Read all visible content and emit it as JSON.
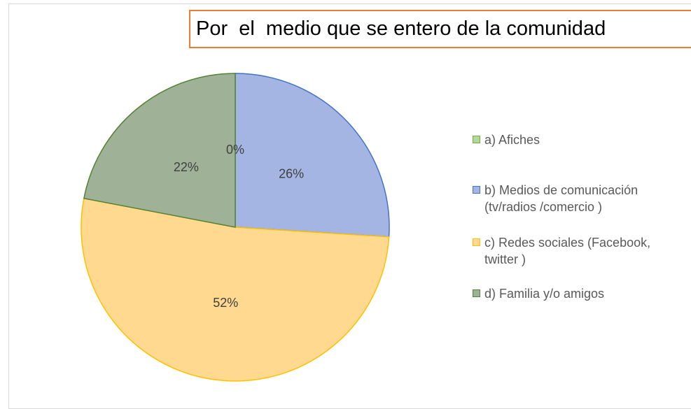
{
  "chart_data": {
    "type": "pie",
    "title": "Por  el  medio que se entero de la comunidad",
    "categories": [
      "a) Afiches",
      "b) Medios de comunicación (tv/radios /comercio )",
      "c) Redes sociales (Facebook, twitter )",
      "d) Familia y/o amigos"
    ],
    "values": [
      0,
      26,
      52,
      22
    ],
    "value_labels": [
      "0%",
      "26%",
      "52%",
      "22%"
    ],
    "colors": [
      "#b5d79b",
      "#a5b5e3",
      "#fed98f",
      "#9fb196"
    ],
    "edge_colors": [
      "#70ad47",
      "#4472c4",
      "#ffc000",
      "#548235"
    ],
    "legend": "right"
  }
}
